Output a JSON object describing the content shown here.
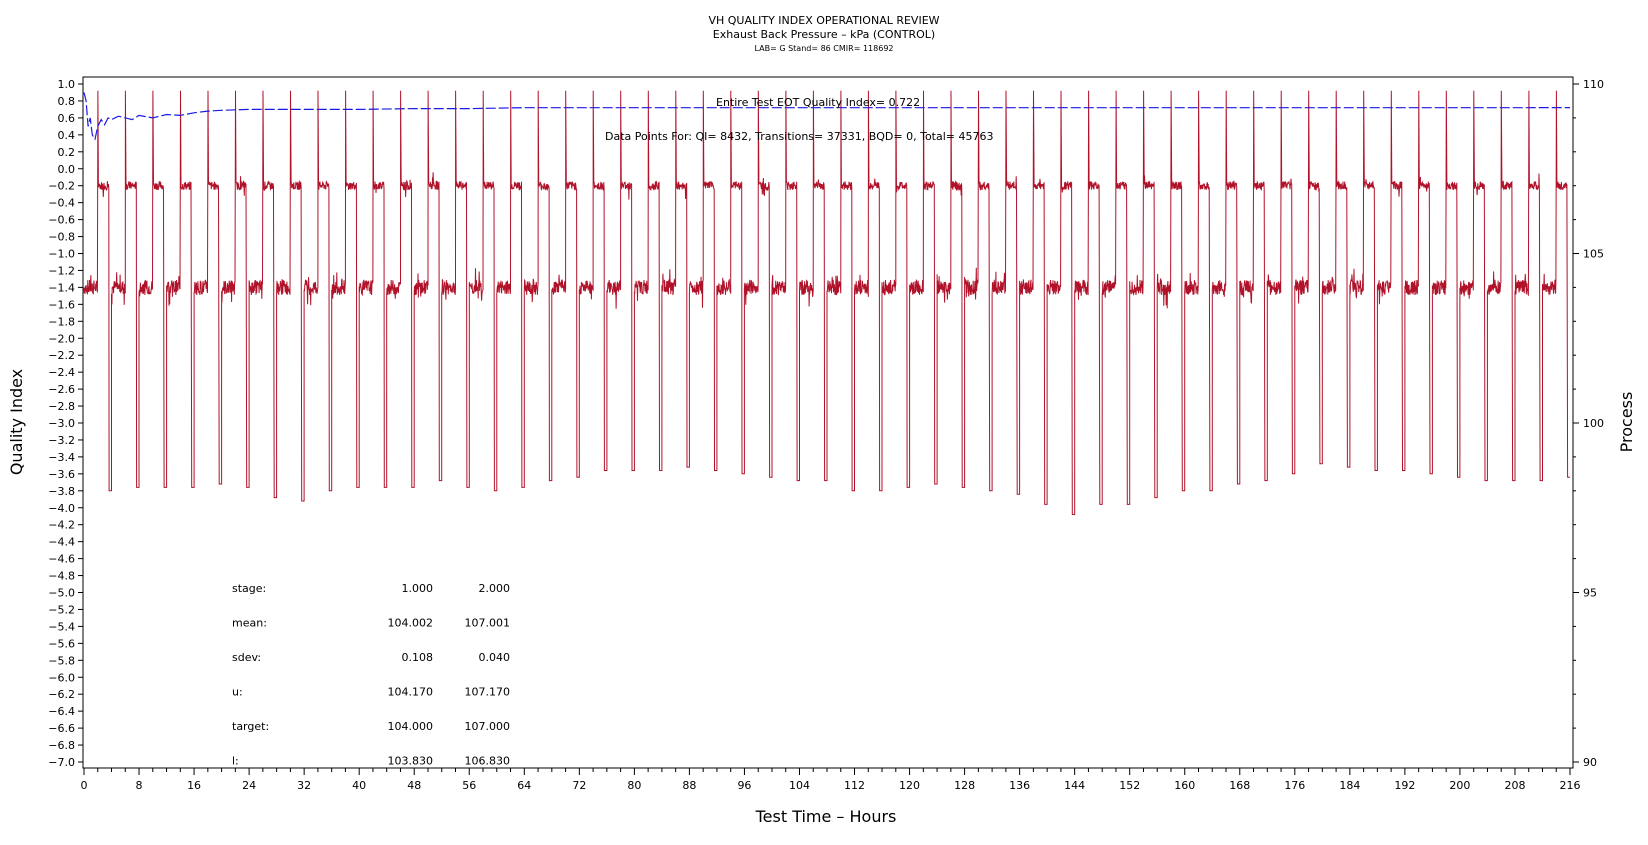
{
  "colors": {
    "process": "#b0122a",
    "qi": "#1a1ae6",
    "frame": "#000000"
  },
  "chart_data": {
    "type": "line",
    "title": "VH QUALITY INDEX OPERATIONAL REVIEW",
    "subtitle": "Exhaust Back Pressure – kPa (CONTROL)",
    "subtitle2": "LAB= G Stand= 86 CMIR= 118692",
    "xlabel": "Test Time – Hours",
    "ylabel_left": "Quality Index",
    "ylabel_right": "Process",
    "xlim": [
      0,
      216
    ],
    "ylim_left": [
      -7.0,
      1.0
    ],
    "ylim_right": [
      90,
      110
    ],
    "x_ticks": [
      "0",
      "8",
      "16",
      "24",
      "32",
      "40",
      "48",
      "56",
      "64",
      "72",
      "80",
      "88",
      "96",
      "104",
      "112",
      "120",
      "128",
      "136",
      "144",
      "152",
      "160",
      "168",
      "176",
      "184",
      "192",
      "200",
      "208",
      "216"
    ],
    "y_left_ticks": [
      "1.0",
      "0.8",
      "0.6",
      "0.4",
      "0.2",
      "0.0",
      "−0.2",
      "−0.4",
      "−0.6",
      "−0.8",
      "−1.0",
      "−1.2",
      "−1.4",
      "−1.6",
      "−1.8",
      "−2.0",
      "−2.2",
      "−2.4",
      "−2.6",
      "−2.8",
      "−3.0",
      "−3.2",
      "−3.4",
      "−3.6",
      "−3.8",
      "−4.0",
      "−4.2",
      "−4.4",
      "−4.6",
      "−4.8",
      "−5.0",
      "−5.2",
      "−5.4",
      "−5.6",
      "−5.8",
      "−6.0",
      "−6.2",
      "−6.4",
      "−6.6",
      "−6.8",
      "−7.0"
    ],
    "y_right_ticks": [
      "110",
      "105",
      "100",
      "95",
      "90"
    ],
    "annotation_qi": "Entire Test EOT Quality Index=  0.722",
    "annotation_points": "Data Points For: QI=  8432, Transitions= 37331, BQD=     0, Total= 45763",
    "stats": {
      "rows": [
        {
          "label": "stage:",
          "v1": "1.000",
          "v2": "2.000"
        },
        {
          "label": "mean:",
          "v1": "104.002",
          "v2": "107.001"
        },
        {
          "label": "sdev:",
          "v1": "0.108",
          "v2": "0.040"
        },
        {
          "label": "u:",
          "v1": "104.170",
          "v2": "107.170"
        },
        {
          "label": "target:",
          "v1": "104.000",
          "v2": "107.000"
        },
        {
          "label": "l:",
          "v1": "103.830",
          "v2": "106.830"
        }
      ]
    },
    "series": [
      {
        "name": "Process",
        "axis": "right",
        "levels": {
          "stage1": 104.0,
          "stage2": 107.0,
          "drop_min": 97.5
        },
        "cycle_starts_h": [
          0,
          4,
          8,
          12,
          16,
          20,
          24,
          28,
          32,
          36,
          40,
          44,
          48,
          52,
          56,
          60,
          64,
          68,
          72,
          76,
          80,
          84,
          88,
          92,
          96,
          100,
          104,
          108,
          112,
          116,
          120,
          124,
          128,
          132,
          136,
          140,
          144,
          148,
          152,
          156,
          160,
          164,
          168,
          172,
          176,
          180,
          184,
          188,
          192,
          196,
          200,
          204,
          208,
          212
        ],
        "drop_troughs": [
          98.0,
          98.1,
          98.1,
          98.1,
          98.2,
          98.1,
          97.8,
          97.7,
          98.0,
          98.1,
          98.1,
          98.1,
          98.3,
          98.1,
          98.0,
          98.1,
          98.3,
          98.4,
          98.6,
          98.6,
          98.6,
          98.7,
          98.6,
          98.5,
          98.4,
          98.3,
          98.3,
          98.0,
          98.0,
          98.1,
          98.2,
          98.1,
          98.0,
          97.9,
          97.6,
          97.3,
          97.6,
          97.6,
          97.8,
          98.0,
          98.0,
          98.2,
          98.3,
          98.5,
          98.8,
          98.7,
          98.6,
          98.6,
          98.5,
          98.4,
          98.3,
          98.3,
          98.3,
          98.4
        ]
      },
      {
        "name": "Quality Index",
        "axis": "left",
        "points": [
          [
            0,
            0.9
          ],
          [
            0.3,
            0.8
          ],
          [
            0.6,
            0.5
          ],
          [
            0.9,
            0.6
          ],
          [
            1.2,
            0.4
          ],
          [
            1.6,
            0.35
          ],
          [
            2,
            0.5
          ],
          [
            2.5,
            0.58
          ],
          [
            3,
            0.52
          ],
          [
            3.5,
            0.6
          ],
          [
            4,
            0.58
          ],
          [
            5,
            0.62
          ],
          [
            6,
            0.6
          ],
          [
            7,
            0.58
          ],
          [
            8,
            0.63
          ],
          [
            10,
            0.6
          ],
          [
            12,
            0.64
          ],
          [
            14,
            0.63
          ],
          [
            16,
            0.66
          ],
          [
            18,
            0.68
          ],
          [
            20,
            0.69
          ],
          [
            24,
            0.7
          ],
          [
            28,
            0.7
          ],
          [
            32,
            0.7
          ],
          [
            40,
            0.7
          ],
          [
            48,
            0.71
          ],
          [
            56,
            0.71
          ],
          [
            64,
            0.72
          ],
          [
            72,
            0.72
          ],
          [
            80,
            0.72
          ],
          [
            96,
            0.72
          ],
          [
            112,
            0.72
          ],
          [
            128,
            0.72
          ],
          [
            144,
            0.72
          ],
          [
            160,
            0.72
          ],
          [
            176,
            0.72
          ],
          [
            192,
            0.72
          ],
          [
            208,
            0.72
          ],
          [
            216,
            0.722
          ]
        ]
      }
    ]
  }
}
